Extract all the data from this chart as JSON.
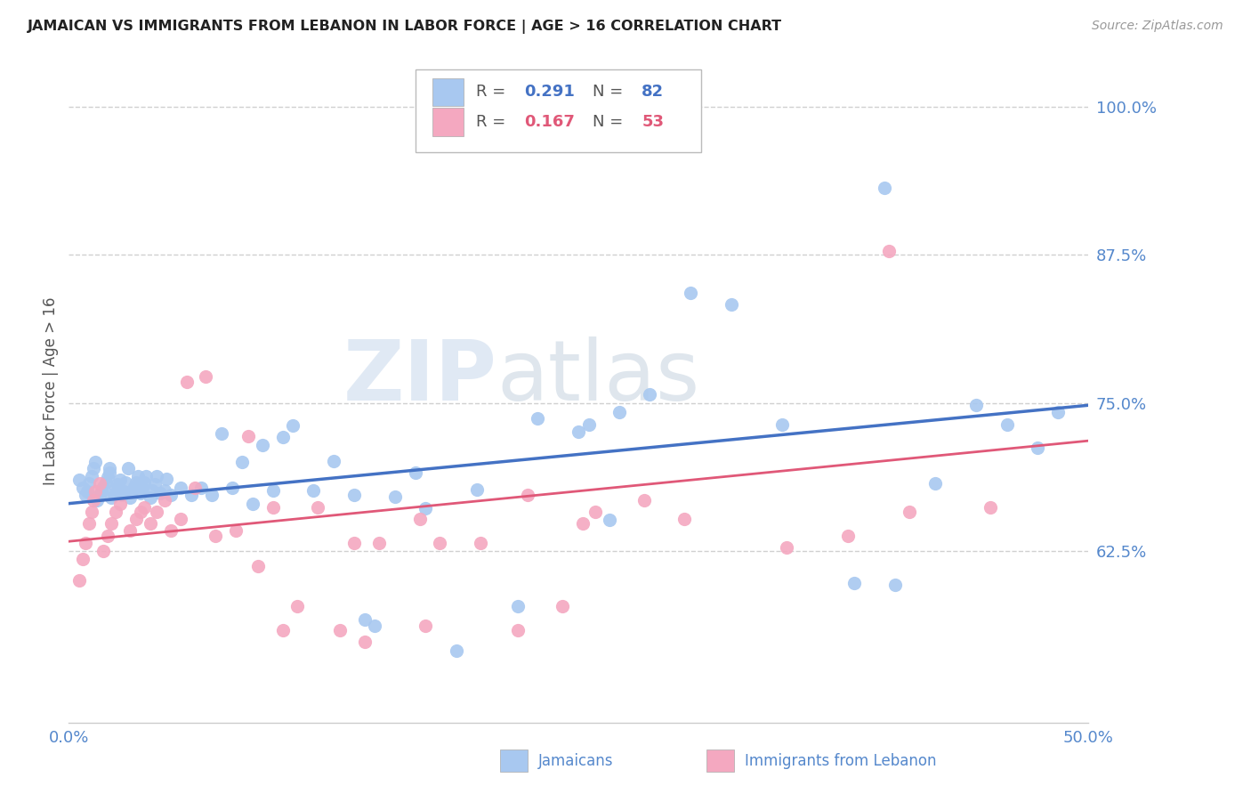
{
  "title": "JAMAICAN VS IMMIGRANTS FROM LEBANON IN LABOR FORCE | AGE > 16 CORRELATION CHART",
  "source": "Source: ZipAtlas.com",
  "ylabel": "In Labor Force | Age > 16",
  "xlim": [
    0.0,
    0.5
  ],
  "ylim": [
    0.48,
    1.04
  ],
  "xticks": [
    0.0,
    0.1,
    0.2,
    0.3,
    0.4,
    0.5
  ],
  "xticklabels": [
    "0.0%",
    "",
    "",
    "",
    "",
    "50.0%"
  ],
  "yticks": [
    0.625,
    0.75,
    0.875,
    1.0
  ],
  "yticklabels": [
    "62.5%",
    "75.0%",
    "87.5%",
    "100.0%"
  ],
  "blue_color": "#a8c8f0",
  "pink_color": "#f4a8c0",
  "blue_line_color": "#4472c4",
  "pink_line_color": "#e05878",
  "tick_color": "#5588cc",
  "watermark_zip": "ZIP",
  "watermark_atlas": "atlas",
  "blue_scatter_x": [
    0.005,
    0.007,
    0.008,
    0.009,
    0.01,
    0.011,
    0.012,
    0.013,
    0.014,
    0.015,
    0.016,
    0.017,
    0.018,
    0.019,
    0.02,
    0.02,
    0.021,
    0.022,
    0.023,
    0.024,
    0.025,
    0.026,
    0.027,
    0.028,
    0.029,
    0.03,
    0.031,
    0.032,
    0.033,
    0.034,
    0.035,
    0.036,
    0.037,
    0.038,
    0.04,
    0.041,
    0.042,
    0.043,
    0.045,
    0.047,
    0.048,
    0.05,
    0.055,
    0.06,
    0.065,
    0.07,
    0.075,
    0.08,
    0.085,
    0.09,
    0.095,
    0.1,
    0.105,
    0.11,
    0.12,
    0.13,
    0.14,
    0.145,
    0.15,
    0.16,
    0.17,
    0.175,
    0.19,
    0.2,
    0.22,
    0.23,
    0.25,
    0.255,
    0.265,
    0.27,
    0.285,
    0.305,
    0.325,
    0.35,
    0.385,
    0.4,
    0.405,
    0.425,
    0.445,
    0.46,
    0.475,
    0.485
  ],
  "blue_scatter_y": [
    0.685,
    0.678,
    0.672,
    0.675,
    0.682,
    0.688,
    0.695,
    0.7,
    0.668,
    0.672,
    0.675,
    0.679,
    0.683,
    0.687,
    0.691,
    0.695,
    0.67,
    0.673,
    0.678,
    0.681,
    0.685,
    0.672,
    0.675,
    0.683,
    0.695,
    0.67,
    0.675,
    0.679,
    0.683,
    0.688,
    0.674,
    0.678,
    0.683,
    0.688,
    0.67,
    0.676,
    0.681,
    0.688,
    0.674,
    0.676,
    0.686,
    0.672,
    0.678,
    0.672,
    0.678,
    0.672,
    0.724,
    0.678,
    0.7,
    0.665,
    0.714,
    0.676,
    0.721,
    0.731,
    0.676,
    0.701,
    0.672,
    0.567,
    0.562,
    0.671,
    0.691,
    0.661,
    0.541,
    0.677,
    0.578,
    0.737,
    0.726,
    0.732,
    0.651,
    0.742,
    0.757,
    0.843,
    0.833,
    0.732,
    0.598,
    0.932,
    0.596,
    0.682,
    0.748,
    0.732,
    0.712,
    0.742
  ],
  "pink_scatter_x": [
    0.005,
    0.007,
    0.008,
    0.01,
    0.011,
    0.012,
    0.013,
    0.015,
    0.017,
    0.019,
    0.021,
    0.023,
    0.025,
    0.03,
    0.033,
    0.035,
    0.037,
    0.04,
    0.043,
    0.047,
    0.05,
    0.055,
    0.058,
    0.062,
    0.067,
    0.072,
    0.082,
    0.088,
    0.093,
    0.1,
    0.105,
    0.112,
    0.122,
    0.133,
    0.14,
    0.145,
    0.152,
    0.172,
    0.175,
    0.182,
    0.202,
    0.22,
    0.225,
    0.242,
    0.252,
    0.258,
    0.282,
    0.302,
    0.352,
    0.382,
    0.402,
    0.412,
    0.452
  ],
  "pink_scatter_y": [
    0.6,
    0.618,
    0.632,
    0.648,
    0.658,
    0.668,
    0.675,
    0.682,
    0.625,
    0.638,
    0.648,
    0.658,
    0.665,
    0.642,
    0.652,
    0.658,
    0.662,
    0.648,
    0.658,
    0.668,
    0.642,
    0.652,
    0.768,
    0.678,
    0.772,
    0.638,
    0.642,
    0.722,
    0.612,
    0.662,
    0.558,
    0.578,
    0.662,
    0.558,
    0.632,
    0.548,
    0.632,
    0.652,
    0.562,
    0.632,
    0.632,
    0.558,
    0.672,
    0.578,
    0.648,
    0.658,
    0.668,
    0.652,
    0.628,
    0.638,
    0.878,
    0.658,
    0.662
  ],
  "blue_trend_x": [
    0.0,
    0.5
  ],
  "blue_trend_y": [
    0.665,
    0.748
  ],
  "pink_trend_x": [
    0.0,
    0.5
  ],
  "pink_trend_y": [
    0.633,
    0.718
  ],
  "background_color": "#ffffff",
  "grid_color": "#d0d0d0",
  "figsize": [
    14.06,
    8.92
  ],
  "dpi": 100
}
